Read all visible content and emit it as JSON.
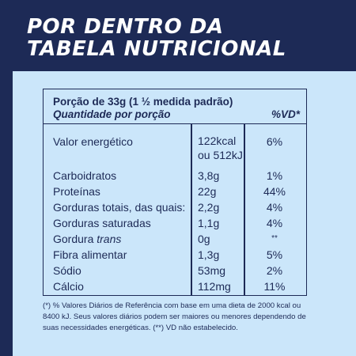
{
  "header": {
    "title_line1": "POR DENTRO DA",
    "title_line2": "TABELA NUTRICIONAL"
  },
  "table": {
    "portion": "Porção de 33g (1 ½ medida padrão)",
    "quantity_label": "Quantidade por porção",
    "vd_label": "%VD*",
    "rows": [
      {
        "name": "Valor energético",
        "amount": "122kcal",
        "amount2": "ou 512kJ",
        "vd": "6%"
      },
      {
        "name": "Carboidratos",
        "amount": "3,8g",
        "vd": "1%"
      },
      {
        "name": "Proteínas",
        "amount": "22g",
        "vd": "44%"
      },
      {
        "name": "Gorduras totais, das quais:",
        "amount": "2,2g",
        "vd": "4%"
      },
      {
        "name": "Gorduras saturadas",
        "amount": "1,1g",
        "vd": "4%"
      },
      {
        "name": "Gordura",
        "name_italic": "trans",
        "amount": "0g",
        "vd": "**"
      },
      {
        "name": "Fibra alimentar",
        "amount": "1,3g",
        "vd": "5%"
      },
      {
        "name": "Sódio",
        "amount": "53mg",
        "vd": "2%"
      },
      {
        "name": "Cálcio",
        "amount": "112mg",
        "vd": "11%"
      }
    ]
  },
  "footnote": "(*) % Valores Diários de Referência com base em uma dieta de 2000 kcal ou 8400 kJ. Seus valores diários podem ser maiores ou menores dependendo de suas necessidades energéticas. (**) VD não estabelecido.",
  "colors": {
    "navy": "#1d2a56",
    "light_blue": "#cbe6fa",
    "white": "#ffffff"
  }
}
